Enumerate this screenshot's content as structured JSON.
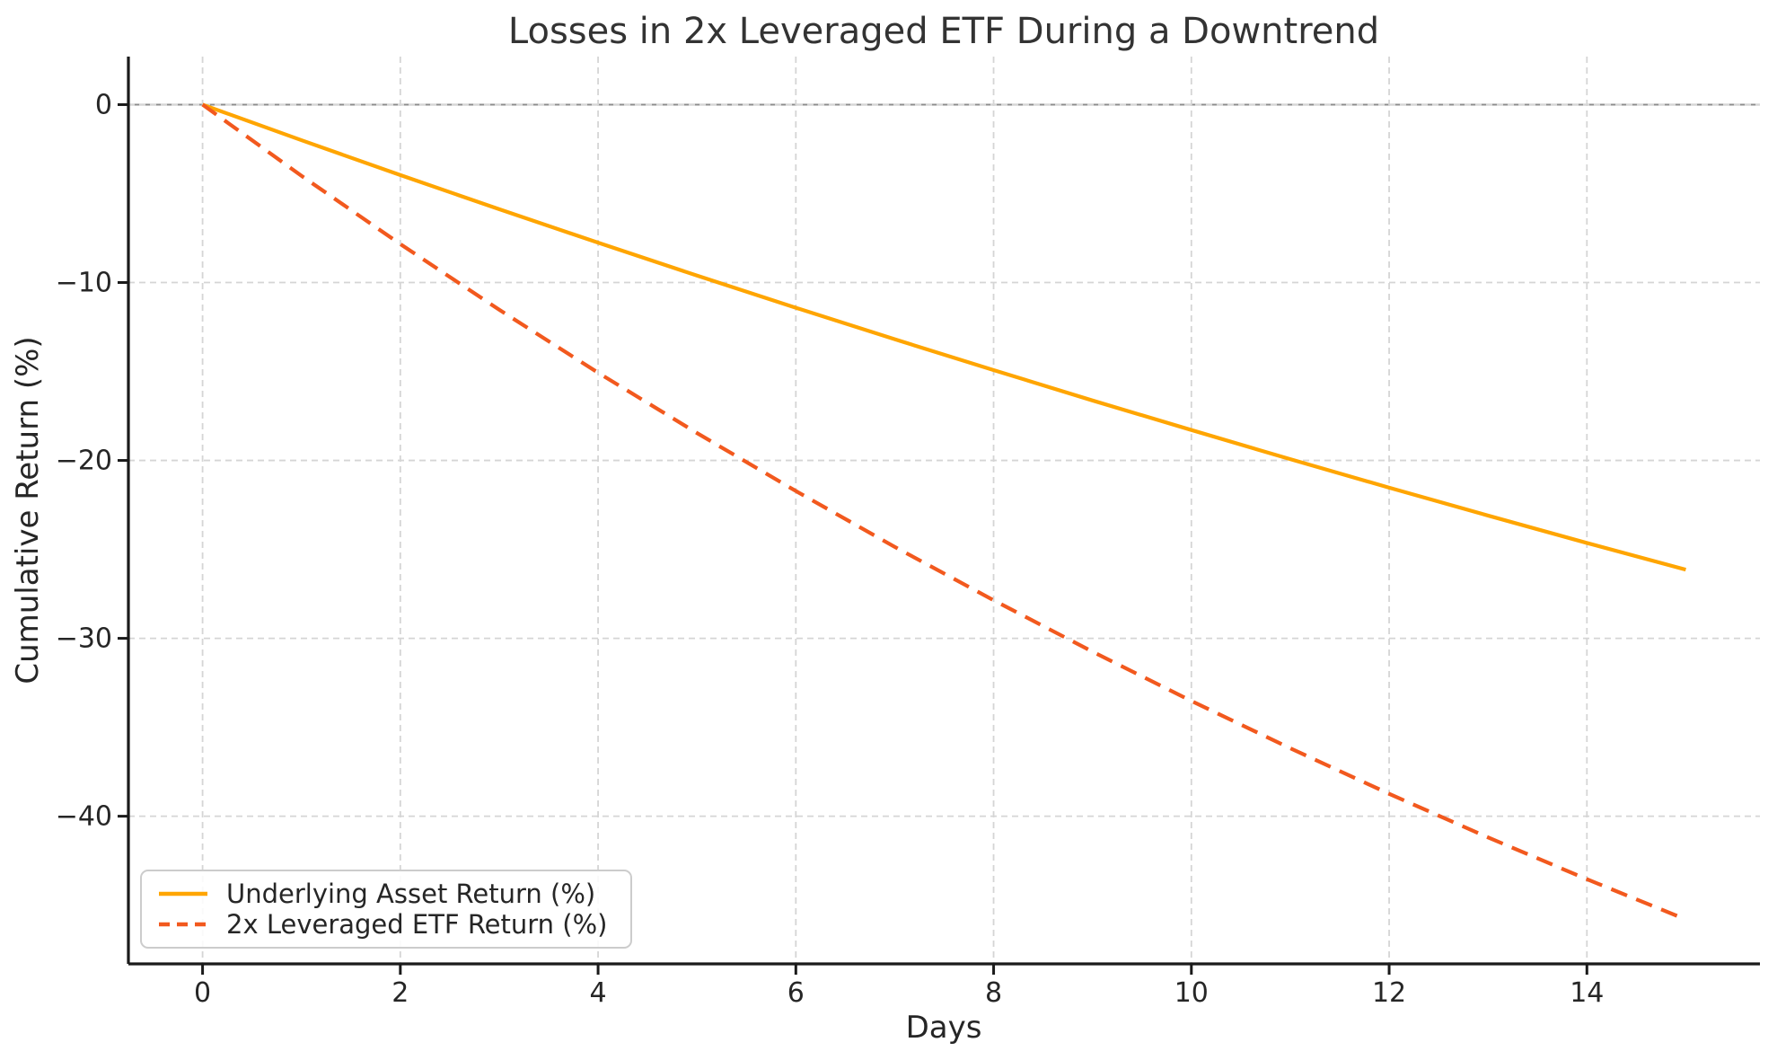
{
  "chart_data": {
    "type": "line",
    "title": "Losses in 2x Leveraged ETF During a Downtrend",
    "xlabel": "Days",
    "ylabel": "Cumulative Return (%)",
    "x": [
      0,
      1,
      2,
      3,
      4,
      5,
      6,
      7,
      8,
      9,
      10,
      11,
      12,
      13,
      14,
      15
    ],
    "series": [
      {
        "name": "Underlying Asset Return (%)",
        "color": "#FFA500",
        "line_style": "solid",
        "values": [
          0,
          -2.0,
          -3.96,
          -5.88,
          -7.76,
          -9.61,
          -11.42,
          -13.19,
          -14.92,
          -16.63,
          -18.29,
          -19.93,
          -21.53,
          -23.1,
          -24.64,
          -26.14
        ]
      },
      {
        "name": "2x Leveraged ETF Return (%)",
        "color": "#F2591E",
        "line_style": "dashed",
        "values": [
          0,
          -4.0,
          -7.84,
          -11.53,
          -15.07,
          -18.46,
          -21.72,
          -24.86,
          -27.86,
          -30.75,
          -33.52,
          -36.18,
          -38.74,
          -41.19,
          -43.54,
          -45.8
        ]
      }
    ],
    "xlim": [
      -0.75,
      15.75
    ],
    "ylim": [
      -48.3,
      2.7
    ],
    "xticks": [
      0,
      2,
      4,
      6,
      8,
      10,
      12,
      14
    ],
    "xtick_labels": [
      "0",
      "2",
      "4",
      "6",
      "8",
      "10",
      "12",
      "14"
    ],
    "yticks": [
      0,
      -10,
      -20,
      -30,
      -40
    ],
    "ytick_labels": [
      "0",
      "−10",
      "−20",
      "−30",
      "−40"
    ],
    "grid": true,
    "legend_position": "lower-left",
    "zero_line": true,
    "colors": {
      "grid": "#D5D5D5",
      "zero_line": "#8C8C8C",
      "axis": "#1A1A1A",
      "text": "#262626",
      "legend_border": "#CCCCCC"
    }
  }
}
